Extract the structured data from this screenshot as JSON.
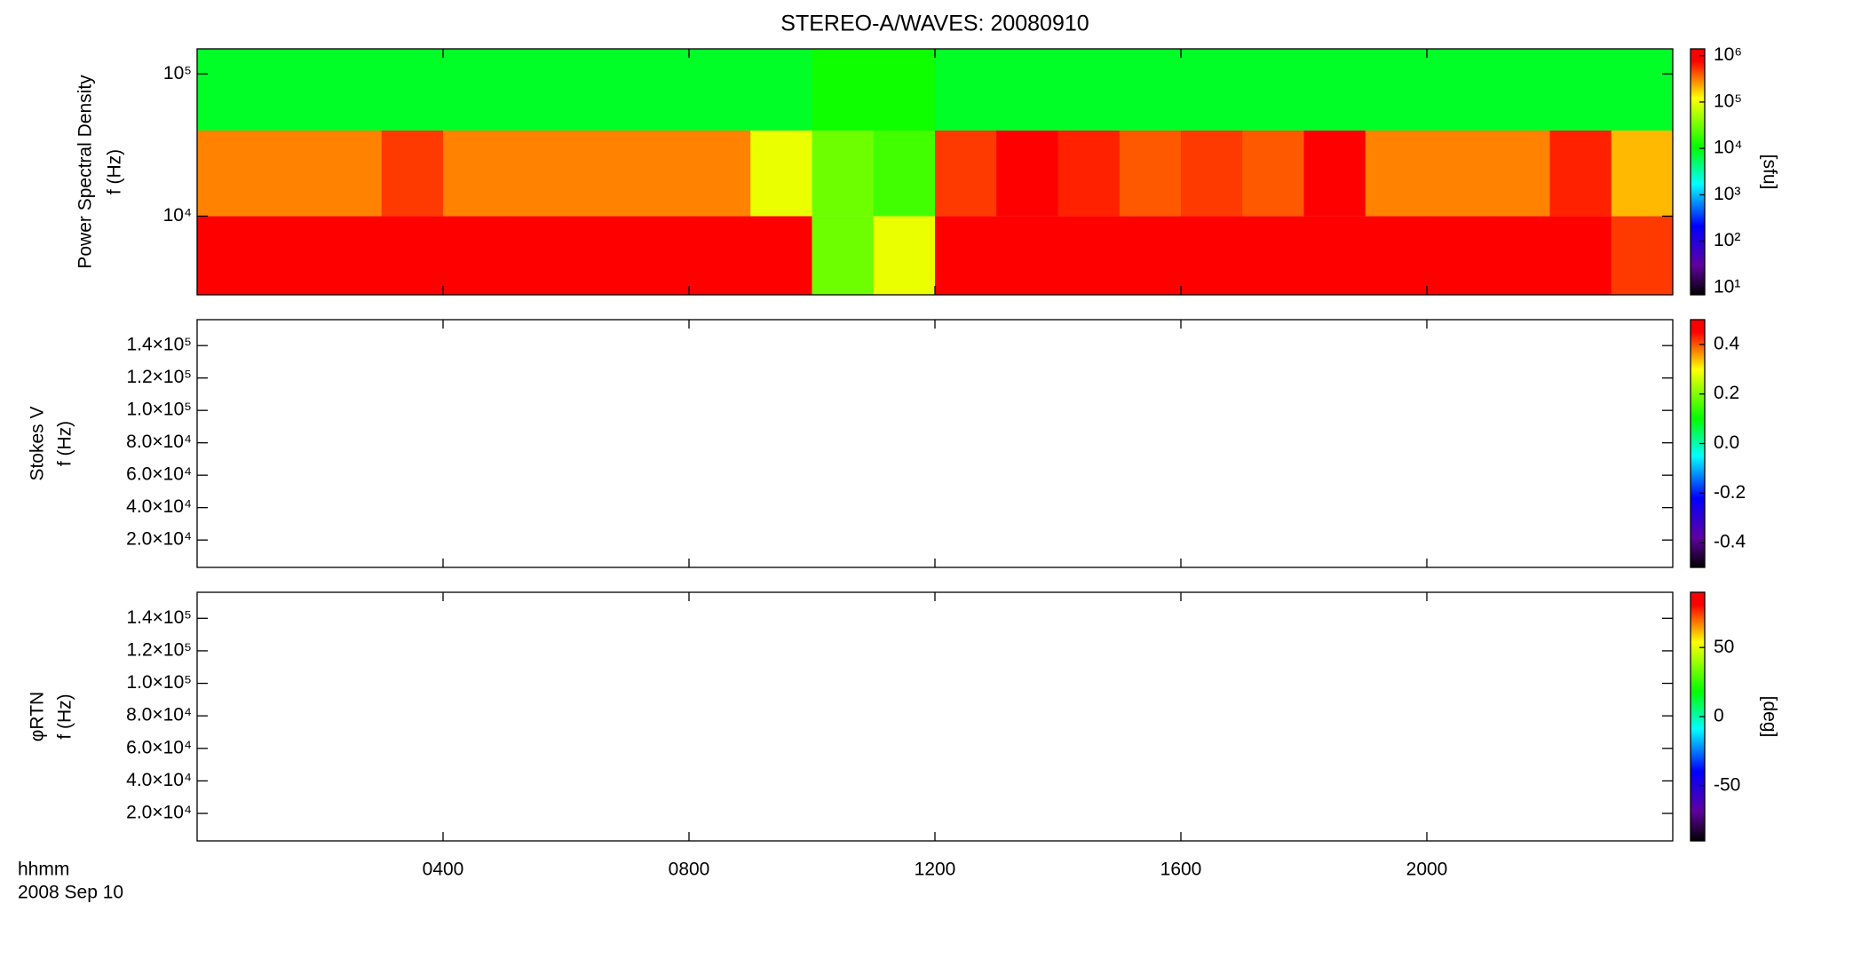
{
  "title": "STEREO-A/WAVES: 20080910",
  "time_label": "hhmm",
  "date_label": "2008 Sep 10",
  "chart_data": [
    {
      "type": "heatmap",
      "ylabel": [
        "Power Spectral Density",
        "f (Hz)"
      ],
      "y_log": true,
      "ylim": [
        2800,
        150000
      ],
      "yticks": [
        {
          "value": 10000,
          "label": "10⁴"
        },
        {
          "value": 100000,
          "label": "10⁵"
        }
      ],
      "x_bins": [
        0,
        1,
        2,
        3,
        4,
        5,
        6,
        7,
        8,
        9,
        10,
        11,
        12,
        13,
        14,
        15,
        16,
        17,
        18,
        19,
        20,
        21,
        22,
        23,
        24
      ],
      "y_bins": [
        2800,
        10000,
        40000,
        150000
      ],
      "values": [
        [
          1200000,
          1200000,
          1200000,
          1200000,
          1200000,
          1200000,
          1200000,
          1200000,
          1200000,
          1200000,
          30000,
          100000,
          1200000,
          1200000,
          1200000,
          1200000,
          1200000,
          1200000,
          1200000,
          1200000,
          1200000,
          1200000,
          1200000,
          500000
        ],
        [
          300000,
          300000,
          300000,
          500000,
          300000,
          300000,
          300000,
          300000,
          300000,
          100000,
          30000,
          20000,
          500000,
          800000,
          600000,
          400000,
          500000,
          400000,
          800000,
          300000,
          300000,
          300000,
          600000,
          200000
        ],
        [
          8000,
          8000,
          8000,
          8000,
          8000,
          8000,
          8000,
          8000,
          8000,
          8000,
          12000,
          12000,
          8000,
          8000,
          8000,
          8000,
          8000,
          8000,
          8000,
          8000,
          8000,
          8000,
          8000,
          8000
        ]
      ],
      "z_log": true,
      "zlim": [
        7,
        1400000
      ],
      "zticks": [
        {
          "value": 10,
          "label": "10¹"
        },
        {
          "value": 100,
          "label": "10²"
        },
        {
          "value": 1000,
          "label": "10³"
        },
        {
          "value": 10000,
          "label": "10⁴"
        },
        {
          "value": 100000,
          "label": "10⁵"
        },
        {
          "value": 1000000,
          "label": "10⁶"
        }
      ],
      "zlabel": "[sfu]"
    },
    {
      "type": "heatmap",
      "ylabel": [
        "Stokes V",
        "f (Hz)"
      ],
      "ylim": [
        3100,
        156000
      ],
      "yticks": [
        {
          "value": 20000,
          "label": "2.0×10⁴"
        },
        {
          "value": 40000,
          "label": "4.0×10⁴"
        },
        {
          "value": 60000,
          "label": "6.0×10⁴"
        },
        {
          "value": 80000,
          "label": "8.0×10⁴"
        },
        {
          "value": 100000,
          "label": "1.0×10⁵"
        },
        {
          "value": 120000,
          "label": "1.2×10⁵"
        },
        {
          "value": 140000,
          "label": "1.4×10⁵"
        }
      ],
      "zlim": [
        -0.5,
        0.5
      ],
      "zticks": [
        -0.4,
        -0.2,
        {
          "value": 0,
          "label": "0.0"
        },
        0.2,
        0.4
      ]
    },
    {
      "type": "heatmap",
      "ylabel": [
        "φRTN",
        "f (Hz)"
      ],
      "ylim": [
        3100,
        156000
      ],
      "yticks": [
        {
          "value": 20000,
          "label": "2.0×10⁴"
        },
        {
          "value": 40000,
          "label": "4.0×10⁴"
        },
        {
          "value": 60000,
          "label": "6.0×10⁴"
        },
        {
          "value": 80000,
          "label": "8.0×10⁴"
        },
        {
          "value": 100000,
          "label": "1.0×10⁵"
        },
        {
          "value": 120000,
          "label": "1.2×10⁵"
        },
        {
          "value": 140000,
          "label": "1.4×10⁵"
        }
      ],
      "zlim": [
        -90,
        90
      ],
      "zticks": [
        -50,
        0,
        50
      ],
      "zlabel": "[deg]",
      "xlim": [
        0,
        24
      ],
      "xticks": [
        {
          "value": 4,
          "label": "0400"
        },
        {
          "value": 8,
          "label": "0800"
        },
        {
          "value": 12,
          "label": "1200"
        },
        {
          "value": 16,
          "label": "1600"
        },
        {
          "value": 20,
          "label": "2000"
        }
      ]
    }
  ]
}
